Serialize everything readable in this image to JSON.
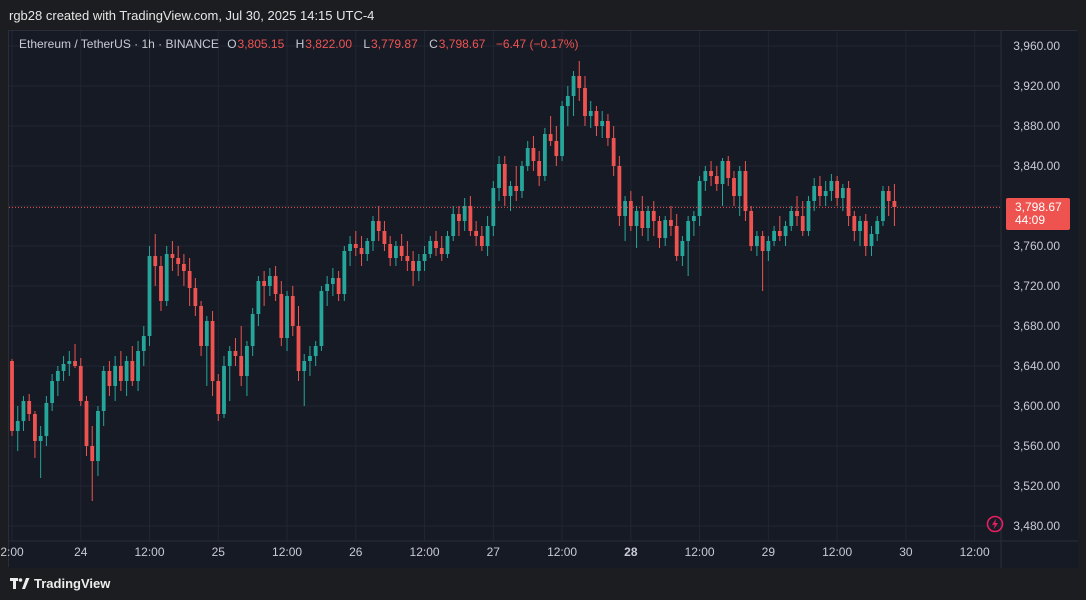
{
  "header": {
    "credit": "rgb28 created with TradingView.com, Jul 30, 2025 14:15 UTC-4"
  },
  "legend": {
    "symbol": "Ethereum / TetherUS · 1h · BINANCE",
    "o_label": "O",
    "o_value": "3,805.15",
    "h_label": "H",
    "h_value": "3,822.00",
    "l_label": "L",
    "l_value": "3,779.87",
    "c_label": "C",
    "c_value": "3,798.67",
    "change": "−6.47 (−0.17%)"
  },
  "price_tag": {
    "price": "3,798.67",
    "countdown": "44:09"
  },
  "footer": {
    "brand": "TradingView"
  },
  "colors": {
    "background": "#161a25",
    "grid": "#232632",
    "up": "#26a69a",
    "down": "#ef5350",
    "axis_text": "#c8cbd3",
    "accent": "#e91e63"
  },
  "icons": {
    "brand_logo": "tradingview-logo-icon",
    "alert": "lightning-bolt-icon"
  },
  "chart_data": {
    "type": "candlestick",
    "title": "Ethereum / TetherUS · 1h · BINANCE",
    "interval": "1h",
    "y_ticks": [
      "3,960.00",
      "3,920.00",
      "3,880.00",
      "3,840.00",
      "3,800.00",
      "3,760.00",
      "3,720.00",
      "3,680.00",
      "3,640.00",
      "3,600.00",
      "3,560.00",
      "3,520.00",
      "3,480.00"
    ],
    "y_tick_values": [
      3960,
      3920,
      3880,
      3840,
      3800,
      3760,
      3720,
      3680,
      3640,
      3600,
      3560,
      3520,
      3480
    ],
    "ylim": [
      3465,
      3975
    ],
    "x_ticks": [
      {
        "label": "2:00",
        "bar": 0,
        "bold": false
      },
      {
        "label": "24",
        "bar": 12,
        "bold": false
      },
      {
        "label": "12:00",
        "bar": 24,
        "bold": false
      },
      {
        "label": "25",
        "bar": 36,
        "bold": false
      },
      {
        "label": "12:00",
        "bar": 48,
        "bold": false
      },
      {
        "label": "26",
        "bar": 60,
        "bold": false
      },
      {
        "label": "12:00",
        "bar": 72,
        "bold": false
      },
      {
        "label": "27",
        "bar": 84,
        "bold": false
      },
      {
        "label": "12:00",
        "bar": 96,
        "bold": false
      },
      {
        "label": "28",
        "bar": 108,
        "bold": true
      },
      {
        "label": "12:00",
        "bar": 120,
        "bold": false
      },
      {
        "label": "29",
        "bar": 132,
        "bold": false
      },
      {
        "label": "12:00",
        "bar": 144,
        "bold": false
      },
      {
        "label": "30",
        "bar": 156,
        "bold": false
      },
      {
        "label": "12:00",
        "bar": 168,
        "bold": false
      }
    ],
    "last_price": 3798.67,
    "grid": true,
    "candles": [
      [
        3645,
        3647,
        3570,
        3575
      ],
      [
        3575,
        3600,
        3555,
        3585
      ],
      [
        3585,
        3610,
        3575,
        3605
      ],
      [
        3605,
        3612,
        3585,
        3592
      ],
      [
        3592,
        3595,
        3548,
        3565
      ],
      [
        3565,
        3580,
        3528,
        3570
      ],
      [
        3570,
        3610,
        3560,
        3603
      ],
      [
        3603,
        3632,
        3595,
        3625
      ],
      [
        3625,
        3640,
        3610,
        3635
      ],
      [
        3635,
        3650,
        3625,
        3642
      ],
      [
        3642,
        3655,
        3630,
        3645
      ],
      [
        3645,
        3662,
        3638,
        3640
      ],
      [
        3640,
        3648,
        3600,
        3605
      ],
      [
        3605,
        3610,
        3550,
        3560
      ],
      [
        3560,
        3580,
        3505,
        3545
      ],
      [
        3545,
        3600,
        3530,
        3595
      ],
      [
        3595,
        3640,
        3580,
        3635
      ],
      [
        3635,
        3645,
        3610,
        3620
      ],
      [
        3620,
        3650,
        3605,
        3640
      ],
      [
        3640,
        3655,
        3615,
        3625
      ],
      [
        3625,
        3650,
        3610,
        3645
      ],
      [
        3645,
        3660,
        3620,
        3625
      ],
      [
        3625,
        3665,
        3615,
        3655
      ],
      [
        3655,
        3680,
        3640,
        3670
      ],
      [
        3670,
        3760,
        3660,
        3750
      ],
      [
        3750,
        3772,
        3720,
        3740
      ],
      [
        3740,
        3750,
        3695,
        3705
      ],
      [
        3705,
        3760,
        3700,
        3752
      ],
      [
        3752,
        3765,
        3735,
        3748
      ],
      [
        3748,
        3760,
        3730,
        3742
      ],
      [
        3742,
        3752,
        3720,
        3735
      ],
      [
        3735,
        3748,
        3700,
        3718
      ],
      [
        3718,
        3728,
        3690,
        3700
      ],
      [
        3700,
        3705,
        3650,
        3660
      ],
      [
        3660,
        3690,
        3620,
        3685
      ],
      [
        3685,
        3695,
        3610,
        3625
      ],
      [
        3625,
        3632,
        3585,
        3592
      ],
      [
        3592,
        3650,
        3588,
        3640
      ],
      [
        3640,
        3660,
        3605,
        3655
      ],
      [
        3655,
        3668,
        3640,
        3650
      ],
      [
        3650,
        3680,
        3620,
        3630
      ],
      [
        3630,
        3665,
        3610,
        3660
      ],
      [
        3660,
        3698,
        3650,
        3692
      ],
      [
        3692,
        3730,
        3680,
        3725
      ],
      [
        3725,
        3735,
        3700,
        3720
      ],
      [
        3720,
        3738,
        3710,
        3730
      ],
      [
        3730,
        3740,
        3705,
        3712
      ],
      [
        3712,
        3725,
        3660,
        3668
      ],
      [
        3668,
        3715,
        3655,
        3710
      ],
      [
        3710,
        3720,
        3670,
        3680
      ],
      [
        3680,
        3700,
        3625,
        3635
      ],
      [
        3635,
        3652,
        3600,
        3645
      ],
      [
        3645,
        3660,
        3630,
        3650
      ],
      [
        3650,
        3665,
        3640,
        3660
      ],
      [
        3660,
        3720,
        3655,
        3715
      ],
      [
        3715,
        3730,
        3700,
        3722
      ],
      [
        3722,
        3738,
        3710,
        3728
      ],
      [
        3728,
        3735,
        3705,
        3712
      ],
      [
        3712,
        3760,
        3705,
        3755
      ],
      [
        3755,
        3770,
        3740,
        3762
      ],
      [
        3762,
        3775,
        3750,
        3758
      ],
      [
        3758,
        3770,
        3740,
        3752
      ],
      [
        3752,
        3768,
        3745,
        3765
      ],
      [
        3765,
        3790,
        3755,
        3785
      ],
      [
        3785,
        3800,
        3765,
        3775
      ],
      [
        3775,
        3785,
        3755,
        3762
      ],
      [
        3762,
        3770,
        3740,
        3748
      ],
      [
        3748,
        3765,
        3740,
        3760
      ],
      [
        3760,
        3772,
        3745,
        3750
      ],
      [
        3750,
        3765,
        3735,
        3745
      ],
      [
        3745,
        3755,
        3720,
        3735
      ],
      [
        3735,
        3752,
        3725,
        3745
      ],
      [
        3745,
        3760,
        3735,
        3752
      ],
      [
        3752,
        3770,
        3748,
        3765
      ],
      [
        3765,
        3775,
        3750,
        3758
      ],
      [
        3758,
        3770,
        3745,
        3752
      ],
      [
        3752,
        3775,
        3748,
        3770
      ],
      [
        3770,
        3800,
        3765,
        3792
      ],
      [
        3792,
        3800,
        3770,
        3785
      ],
      [
        3785,
        3808,
        3775,
        3800
      ],
      [
        3800,
        3810,
        3770,
        3775
      ],
      [
        3775,
        3785,
        3760,
        3770
      ],
      [
        3770,
        3780,
        3755,
        3760
      ],
      [
        3760,
        3790,
        3750,
        3780
      ],
      [
        3780,
        3825,
        3770,
        3818
      ],
      [
        3818,
        3850,
        3805,
        3842
      ],
      [
        3842,
        3850,
        3800,
        3810
      ],
      [
        3810,
        3825,
        3795,
        3820
      ],
      [
        3820,
        3840,
        3805,
        3815
      ],
      [
        3815,
        3845,
        3808,
        3840
      ],
      [
        3840,
        3865,
        3835,
        3858
      ],
      [
        3858,
        3870,
        3835,
        3845
      ],
      [
        3845,
        3855,
        3820,
        3830
      ],
      [
        3830,
        3878,
        3825,
        3872
      ],
      [
        3872,
        3890,
        3860,
        3865
      ],
      [
        3865,
        3880,
        3840,
        3850
      ],
      [
        3850,
        3905,
        3845,
        3900
      ],
      [
        3900,
        3920,
        3880,
        3910
      ],
      [
        3910,
        3935,
        3890,
        3930
      ],
      [
        3930,
        3945,
        3905,
        3918
      ],
      [
        3918,
        3930,
        3880,
        3890
      ],
      [
        3890,
        3905,
        3878,
        3895
      ],
      [
        3895,
        3900,
        3870,
        3880
      ],
      [
        3880,
        3895,
        3868,
        3885
      ],
      [
        3885,
        3892,
        3860,
        3868
      ],
      [
        3868,
        3880,
        3830,
        3840
      ],
      [
        3840,
        3850,
        3780,
        3790
      ],
      [
        3790,
        3810,
        3765,
        3805
      ],
      [
        3805,
        3815,
        3775,
        3780
      ],
      [
        3780,
        3800,
        3758,
        3795
      ],
      [
        3795,
        3810,
        3770,
        3778
      ],
      [
        3778,
        3800,
        3765,
        3795
      ],
      [
        3795,
        3805,
        3770,
        3785
      ],
      [
        3785,
        3790,
        3758,
        3768
      ],
      [
        3768,
        3790,
        3760,
        3786
      ],
      [
        3786,
        3800,
        3770,
        3780
      ],
      [
        3780,
        3792,
        3745,
        3750
      ],
      [
        3750,
        3770,
        3740,
        3765
      ],
      [
        3765,
        3790,
        3730,
        3785
      ],
      [
        3785,
        3795,
        3770,
        3790
      ],
      [
        3790,
        3830,
        3780,
        3825
      ],
      [
        3825,
        3840,
        3815,
        3835
      ],
      [
        3835,
        3845,
        3820,
        3830
      ],
      [
        3830,
        3840,
        3815,
        3822
      ],
      [
        3822,
        3848,
        3800,
        3845
      ],
      [
        3845,
        3850,
        3820,
        3828
      ],
      [
        3828,
        3835,
        3800,
        3810
      ],
      [
        3810,
        3840,
        3790,
        3835
      ],
      [
        3835,
        3845,
        3785,
        3795
      ],
      [
        3795,
        3800,
        3755,
        3760
      ],
      [
        3760,
        3775,
        3750,
        3770
      ],
      [
        3770,
        3775,
        3715,
        3755
      ],
      [
        3755,
        3770,
        3745,
        3765
      ],
      [
        3765,
        3780,
        3760,
        3775
      ],
      [
        3775,
        3790,
        3765,
        3770
      ],
      [
        3770,
        3785,
        3760,
        3780
      ],
      [
        3780,
        3800,
        3775,
        3795
      ],
      [
        3795,
        3810,
        3780,
        3790
      ],
      [
        3790,
        3805,
        3770,
        3775
      ],
      [
        3775,
        3810,
        3770,
        3805
      ],
      [
        3805,
        3828,
        3795,
        3820
      ],
      [
        3820,
        3830,
        3800,
        3810
      ],
      [
        3810,
        3825,
        3800,
        3815
      ],
      [
        3815,
        3832,
        3805,
        3825
      ],
      [
        3825,
        3830,
        3800,
        3808
      ],
      [
        3808,
        3822,
        3795,
        3818
      ],
      [
        3818,
        3825,
        3780,
        3790
      ],
      [
        3790,
        3795,
        3765,
        3775
      ],
      [
        3775,
        3790,
        3760,
        3785
      ],
      [
        3785,
        3792,
        3750,
        3760
      ],
      [
        3760,
        3780,
        3750,
        3772
      ],
      [
        3772,
        3790,
        3765,
        3785
      ],
      [
        3785,
        3820,
        3780,
        3815
      ],
      [
        3815,
        3820,
        3790,
        3805
      ],
      [
        3805,
        3822,
        3780,
        3799
      ]
    ]
  }
}
